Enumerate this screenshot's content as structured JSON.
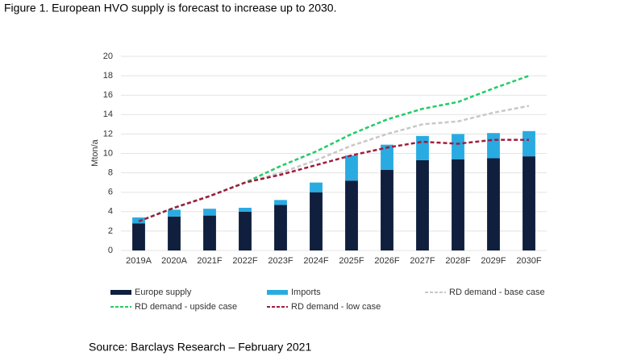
{
  "chart_data": {
    "type": "bar",
    "title": "Figure 1. European HVO supply is forecast to increase up to 2030.",
    "source": "Source: Barclays Research – February 2021",
    "y_label": "Mton/a",
    "categories": [
      "2019A",
      "2020A",
      "2021F",
      "2022F",
      "2023F",
      "2024F",
      "2025F",
      "2026F",
      "2027F",
      "2028F",
      "2029F",
      "2030F"
    ],
    "series": [
      {
        "name": "Europe supply",
        "type": "bar",
        "color": "#0f1f3d",
        "values": [
          2.8,
          3.5,
          3.6,
          4.0,
          4.7,
          6.0,
          7.2,
          8.3,
          9.3,
          9.4,
          9.5,
          9.7
        ]
      },
      {
        "name": "Imports",
        "type": "bar",
        "color": "#29abe2",
        "values": [
          0.6,
          0.7,
          0.7,
          0.4,
          0.5,
          1.0,
          2.6,
          2.6,
          2.5,
          2.6,
          2.6,
          2.6
        ]
      },
      {
        "name": "RD demand - base case",
        "type": "line",
        "dashed": true,
        "color": "#c8c8c8",
        "values": [
          3.0,
          4.4,
          5.6,
          7.0,
          8.0,
          9.3,
          10.8,
          12.0,
          13.0,
          13.3,
          14.2,
          14.9
        ]
      },
      {
        "name": "RD demand - upside case",
        "type": "line",
        "dashed": true,
        "color": "#22cc66",
        "values": [
          3.0,
          4.4,
          5.6,
          7.0,
          8.7,
          10.2,
          12.0,
          13.5,
          14.6,
          15.3,
          16.7,
          18.0
        ]
      },
      {
        "name": "RD demand - low case",
        "type": "line",
        "dashed": true,
        "color": "#a01c3c",
        "values": [
          3.0,
          4.4,
          5.6,
          7.0,
          7.8,
          8.8,
          9.8,
          10.6,
          11.2,
          11.0,
          11.4,
          11.4
        ]
      }
    ],
    "ylim": [
      0,
      20
    ],
    "yticks": [
      0,
      2,
      4,
      6,
      8,
      10,
      12,
      14,
      16,
      18,
      20
    ],
    "grid": true
  }
}
